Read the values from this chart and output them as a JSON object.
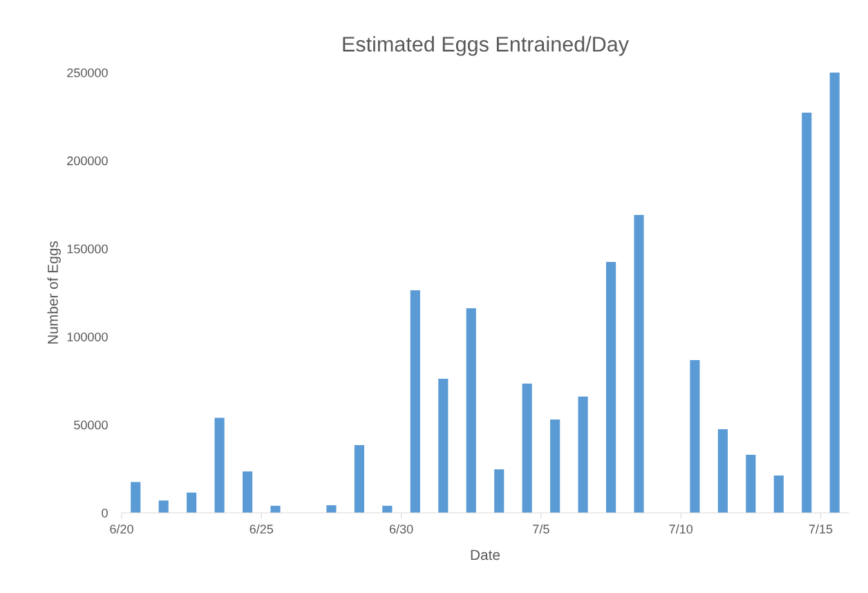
{
  "chart_data": {
    "type": "bar",
    "title": "Estimated Eggs Entrained/Day",
    "xlabel": "Date",
    "ylabel": "Number of Eggs",
    "categories": [
      "6/20",
      null,
      null,
      null,
      null,
      "6/25",
      null,
      null,
      null,
      null,
      "6/30",
      null,
      null,
      null,
      null,
      "7/5",
      null,
      null,
      null,
      null,
      "7/10",
      null,
      null,
      null,
      null,
      "7/15"
    ],
    "values": [
      17500,
      7000,
      11500,
      54000,
      23500,
      4000,
      null,
      4300,
      38500,
      4000,
      126400,
      76100,
      116200,
      24700,
      73400,
      53000,
      66000,
      142500,
      169200,
      null,
      86700,
      47500,
      33000,
      21200,
      227200,
      250000
    ],
    "color": "#5b9bd5",
    "ylim": [
      0,
      250000
    ],
    "yticks": [
      0,
      50000,
      100000,
      150000,
      200000,
      250000
    ],
    "grid": false,
    "legend": false
  }
}
